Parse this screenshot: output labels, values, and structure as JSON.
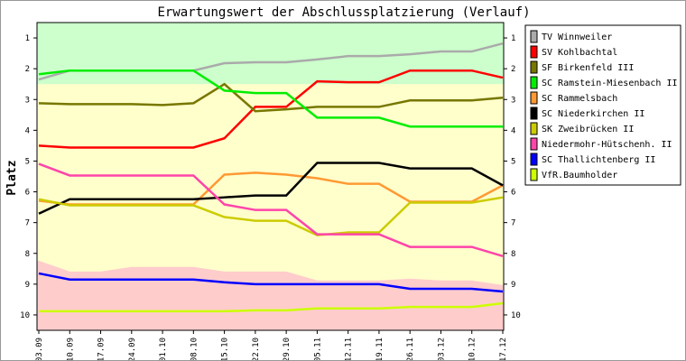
{
  "chart_data": {
    "type": "line",
    "title": "Erwartungswert der Abschlussplatzierung (Verlauf)",
    "ylabel": "Platz",
    "xlabel": "",
    "ylim": [
      0.5,
      10.5
    ],
    "y_inverted": true,
    "yticks": [
      "1",
      "2",
      "3",
      "4",
      "5",
      "6",
      "7",
      "8",
      "9",
      "10"
    ],
    "categories": [
      "03.09",
      "10.09",
      "17.09",
      "24.09",
      "01.10",
      "08.10",
      "15.10",
      "22.10",
      "29.10",
      "05.11",
      "12.11",
      "19.11",
      "26.11",
      "03.12",
      "10.12",
      "17.12"
    ],
    "legend_position": "right",
    "bands": {
      "green_bottom": 2.5,
      "pink_top": [
        8.24,
        8.59,
        8.59,
        8.44,
        8.44,
        8.44,
        8.59,
        8.59,
        8.59,
        8.88,
        8.88,
        8.88,
        8.82,
        8.88,
        8.88,
        9.03
      ],
      "colors": {
        "green": "#ccffcc",
        "yellow": "#ffffcc",
        "pink": "#ffcccc"
      }
    },
    "series": [
      {
        "name": "TV Winnweiler",
        "color": "#aaaaaa",
        "values": [
          2.35,
          2.06,
          2.06,
          2.06,
          2.06,
          2.06,
          1.82,
          1.79,
          1.79,
          1.7,
          1.59,
          1.59,
          1.53,
          1.44,
          1.44,
          1.18
        ]
      },
      {
        "name": "SV Kohlbachtal",
        "color": "#ff0000",
        "values": [
          4.5,
          4.56,
          4.56,
          4.56,
          4.56,
          4.56,
          4.26,
          3.24,
          3.24,
          2.41,
          2.44,
          2.44,
          2.06,
          2.06,
          2.06,
          2.29
        ]
      },
      {
        "name": "SF Birkenfeld III",
        "color": "#777700",
        "values": [
          3.12,
          3.15,
          3.15,
          3.15,
          3.18,
          3.12,
          2.5,
          3.38,
          3.32,
          3.24,
          3.24,
          3.24,
          3.03,
          3.03,
          3.03,
          2.94
        ]
      },
      {
        "name": "SC Ramstein-Miesenbach II",
        "color": "#00ee00",
        "values": [
          2.18,
          2.06,
          2.06,
          2.06,
          2.06,
          2.06,
          2.71,
          2.79,
          2.79,
          3.59,
          3.59,
          3.59,
          3.88,
          3.88,
          3.88,
          3.88
        ]
      },
      {
        "name": "SC Rammelsbach",
        "color": "#ff9933",
        "values": [
          6.29,
          6.41,
          6.41,
          6.41,
          6.41,
          6.41,
          5.44,
          5.38,
          5.44,
          5.56,
          5.74,
          5.74,
          6.32,
          6.32,
          6.32,
          5.79
        ]
      },
      {
        "name": "SC Niederkirchen II",
        "color": "#000000",
        "values": [
          6.71,
          6.24,
          6.24,
          6.24,
          6.24,
          6.24,
          6.18,
          6.12,
          6.12,
          5.06,
          5.06,
          5.06,
          5.24,
          5.24,
          5.24,
          5.79
        ]
      },
      {
        "name": "SK Zweibrücken II",
        "color": "#cccc00",
        "values": [
          6.24,
          6.44,
          6.44,
          6.44,
          6.44,
          6.44,
          6.82,
          6.94,
          6.94,
          7.41,
          7.32,
          7.32,
          6.35,
          6.35,
          6.35,
          6.18
        ]
      },
      {
        "name": "Niedermohr-Hütschenh. II",
        "color": "#ff44aa",
        "values": [
          5.09,
          5.47,
          5.47,
          5.47,
          5.47,
          5.47,
          6.41,
          6.59,
          6.59,
          7.38,
          7.38,
          7.38,
          7.79,
          7.79,
          7.79,
          8.09
        ]
      },
      {
        "name": "SC Thallichtenberg II",
        "color": "#0000ff",
        "values": [
          8.65,
          8.85,
          8.85,
          8.85,
          8.85,
          8.85,
          8.94,
          9.0,
          9.0,
          9.0,
          9.0,
          9.0,
          9.15,
          9.15,
          9.15,
          9.24
        ]
      },
      {
        "name": "VfR.Baumholder",
        "color": "#ccff00",
        "values": [
          9.88,
          9.88,
          9.88,
          9.88,
          9.88,
          9.88,
          9.88,
          9.85,
          9.85,
          9.79,
          9.79,
          9.79,
          9.74,
          9.74,
          9.74,
          9.62
        ]
      }
    ]
  }
}
